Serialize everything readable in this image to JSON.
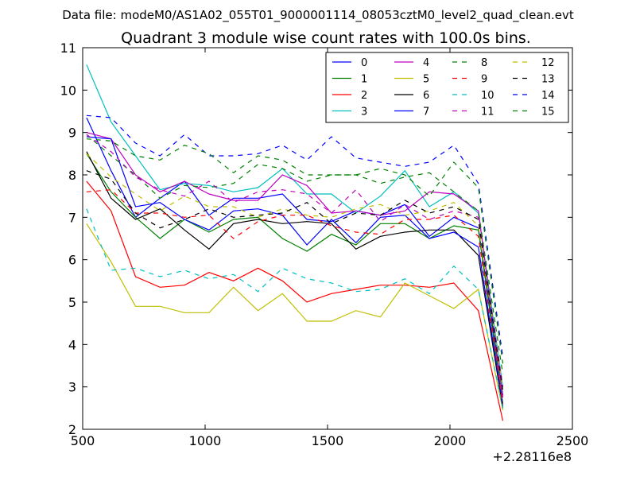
{
  "chart_data": {
    "type": "line",
    "suptitle": "Data file: modeM0/AS1A02_055T01_9000001114_08053cztM0_level2_quad_clean.evt",
    "title": "Quadrant 3 module wise count rates with 100.0s bins.",
    "xlabel": "",
    "ylabel": "",
    "x_offset_label": "+2.28116e8",
    "xlim": [
      500,
      2500
    ],
    "ylim": [
      2,
      11
    ],
    "xticks": [
      "500",
      "1000",
      "1500",
      "2000",
      "2500"
    ],
    "yticks": [
      "2",
      "3",
      "4",
      "5",
      "6",
      "7",
      "8",
      "9",
      "10",
      "11"
    ],
    "grid": false,
    "legend_position": "top-right",
    "x": [
      516,
      616,
      716,
      816,
      916,
      1016,
      1116,
      1216,
      1316,
      1416,
      1516,
      1616,
      1716,
      1816,
      1916,
      2016,
      2116,
      2216
    ],
    "series": [
      {
        "name": "0",
        "color": "#0000ff",
        "dash": "solid",
        "values": [
          9.35,
          8.1,
          7.0,
          7.45,
          7.85,
          7.05,
          7.45,
          7.45,
          7.55,
          6.95,
          6.9,
          7.15,
          7.05,
          7.3,
          6.55,
          7.0,
          6.75,
          2.8
        ]
      },
      {
        "name": "1",
        "color": "#008000",
        "dash": "solid",
        "values": [
          8.5,
          7.6,
          7.0,
          6.5,
          6.95,
          6.65,
          6.95,
          7.0,
          6.5,
          6.2,
          6.6,
          6.35,
          6.85,
          6.85,
          6.5,
          6.8,
          6.7,
          2.6
        ]
      },
      {
        "name": "2",
        "color": "#ff0000",
        "dash": "solid",
        "values": [
          7.85,
          7.15,
          5.6,
          5.35,
          5.4,
          5.7,
          5.5,
          5.8,
          5.5,
          5.0,
          5.2,
          5.3,
          5.4,
          5.4,
          5.35,
          5.45,
          4.8,
          2.2
        ]
      },
      {
        "name": "3",
        "color": "#00bfbf",
        "dash": "solid",
        "values": [
          10.6,
          9.25,
          8.45,
          7.65,
          7.8,
          7.75,
          7.6,
          7.7,
          8.15,
          7.55,
          7.55,
          7.1,
          7.5,
          8.1,
          7.25,
          7.6,
          7.1,
          3.0
        ]
      },
      {
        "name": "4",
        "color": "#bf00bf",
        "dash": "solid",
        "values": [
          9.0,
          8.85,
          8.0,
          7.6,
          7.85,
          7.55,
          7.4,
          7.4,
          8.0,
          7.75,
          7.1,
          7.15,
          7.05,
          7.15,
          7.6,
          7.55,
          7.15,
          2.75
        ]
      },
      {
        "name": "5",
        "color": "#bfbf00",
        "dash": "solid",
        "values": [
          6.85,
          5.95,
          4.9,
          4.9,
          4.75,
          4.75,
          5.35,
          4.8,
          5.2,
          4.55,
          4.55,
          4.8,
          4.65,
          5.45,
          5.15,
          4.85,
          5.3,
          2.45
        ]
      },
      {
        "name": "6",
        "color": "#000000",
        "dash": "solid",
        "values": [
          8.55,
          7.45,
          6.95,
          7.2,
          6.7,
          6.25,
          6.85,
          6.95,
          6.85,
          6.9,
          6.85,
          6.25,
          6.55,
          6.65,
          6.7,
          6.7,
          6.1,
          2.5
        ]
      },
      {
        "name": "7",
        "color": "#0000ff",
        "dash": "solid",
        "values": [
          8.9,
          8.85,
          7.25,
          7.35,
          6.95,
          6.7,
          7.15,
          7.2,
          7.05,
          6.35,
          6.95,
          6.4,
          7.0,
          7.05,
          6.5,
          6.65,
          6.3,
          2.55
        ]
      },
      {
        "name": "8",
        "color": "#008000",
        "dash": "dashed",
        "values": [
          8.95,
          8.45,
          8.0,
          7.45,
          7.75,
          7.7,
          7.8,
          8.25,
          8.15,
          7.85,
          8.0,
          8.0,
          7.8,
          7.95,
          8.05,
          7.6,
          7.15,
          3.3
        ]
      },
      {
        "name": "9",
        "color": "#ff0000",
        "dash": "dashed",
        "values": [
          7.6,
          7.65,
          7.1,
          7.1,
          7.0,
          7.05,
          6.5,
          6.9,
          7.05,
          7.05,
          6.8,
          6.65,
          6.6,
          6.95,
          6.95,
          7.05,
          6.55,
          2.6
        ]
      },
      {
        "name": "10",
        "color": "#00bfbf",
        "dash": "dashed",
        "values": [
          7.2,
          5.75,
          5.8,
          5.6,
          5.75,
          5.55,
          5.65,
          5.25,
          5.8,
          5.55,
          5.45,
          5.25,
          5.3,
          5.55,
          5.2,
          5.85,
          5.3,
          2.5
        ]
      },
      {
        "name": "11",
        "color": "#bf00bf",
        "dash": "dashed",
        "values": [
          8.95,
          8.55,
          7.95,
          7.65,
          7.5,
          7.85,
          7.35,
          7.6,
          7.65,
          7.55,
          7.1,
          7.65,
          6.9,
          7.3,
          6.95,
          7.15,
          7.0,
          3.0
        ]
      },
      {
        "name": "12",
        "color": "#bfbf00",
        "dash": "dashed",
        "values": [
          8.5,
          7.95,
          7.55,
          7.15,
          7.5,
          7.25,
          7.25,
          7.0,
          7.2,
          7.05,
          7.0,
          7.2,
          7.3,
          7.05,
          7.15,
          7.35,
          6.8,
          2.95
        ]
      },
      {
        "name": "13",
        "color": "#000000",
        "dash": "dashed",
        "values": [
          8.1,
          7.9,
          7.1,
          6.75,
          6.95,
          7.2,
          7.0,
          7.05,
          7.1,
          7.35,
          6.85,
          7.1,
          7.05,
          7.4,
          7.1,
          7.25,
          6.95,
          2.9
        ]
      },
      {
        "name": "14",
        "color": "#0000ff",
        "dash": "dashed",
        "values": [
          9.4,
          9.35,
          8.75,
          8.45,
          8.95,
          8.45,
          8.45,
          8.5,
          8.7,
          8.35,
          8.9,
          8.4,
          8.3,
          8.2,
          8.3,
          8.7,
          7.8,
          3.7
        ]
      },
      {
        "name": "15",
        "color": "#008000",
        "dash": "dashed",
        "values": [
          8.85,
          8.8,
          8.45,
          8.35,
          8.7,
          8.5,
          8.05,
          8.45,
          8.35,
          8.0,
          8.0,
          8.0,
          8.15,
          8.0,
          7.5,
          8.3,
          7.7,
          3.55
        ]
      }
    ]
  }
}
